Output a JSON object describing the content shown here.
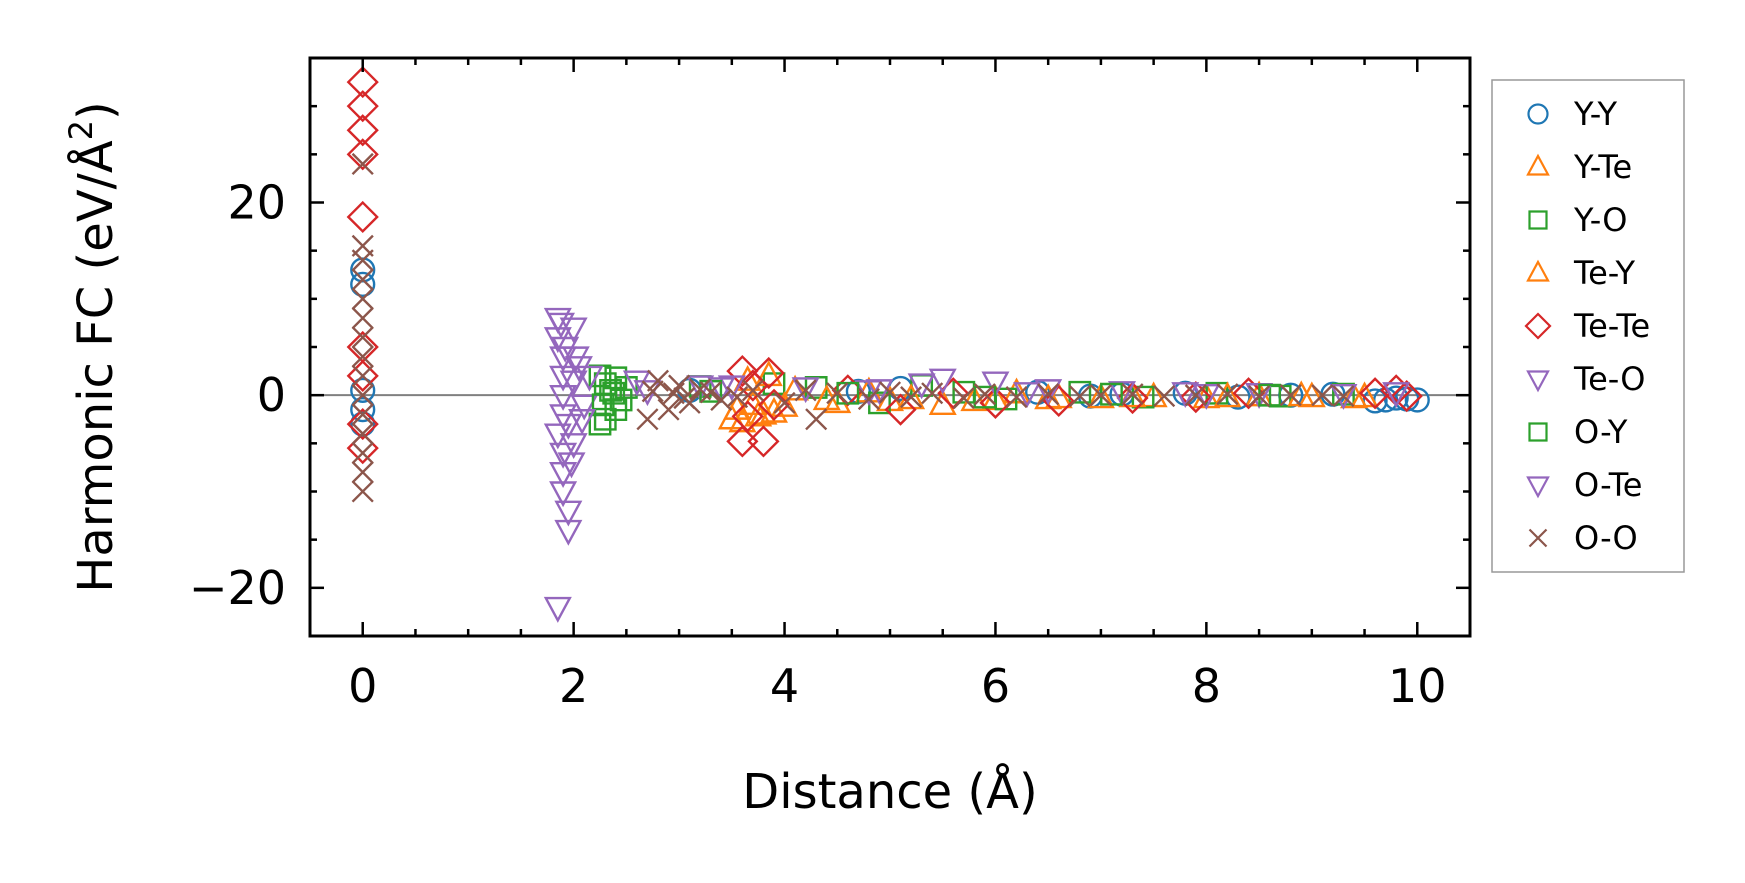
{
  "chart_data": {
    "type": "scatter",
    "xlabel": "Distance (Å)",
    "ylabel_main": "Harmonic FC (eV/Å",
    "ylabel_sup": "2",
    "ylabel_close": ")",
    "xlim": [
      -0.5,
      10.5
    ],
    "ylim": [
      -25,
      35
    ],
    "x_ticks": [
      0,
      2,
      4,
      6,
      8,
      10
    ],
    "x_tick_labels": [
      "0",
      "2",
      "4",
      "6",
      "8",
      "10"
    ],
    "y_ticks": [
      -20,
      0,
      20
    ],
    "y_tick_labels": [
      "−20",
      "0",
      "20"
    ],
    "zero_line": true,
    "grid": false,
    "legend_position": "outside-right",
    "series": [
      {
        "name": "Y-Y",
        "marker": "circle",
        "color": "#1f77b4",
        "points": [
          [
            0,
            13
          ],
          [
            0,
            11.5
          ],
          [
            0,
            0.5
          ],
          [
            0,
            -3
          ],
          [
            0,
            -1.5
          ],
          [
            9.6,
            -0.6
          ],
          [
            9.7,
            -0.5
          ],
          [
            9.8,
            -0.3
          ],
          [
            9.9,
            -0.4
          ],
          [
            10.0,
            -0.5
          ],
          [
            5.1,
            0.7
          ],
          [
            8.3,
            -0.2
          ],
          [
            6.4,
            0.3
          ],
          [
            7.2,
            0.1
          ],
          [
            8.8,
            0.0
          ],
          [
            4.7,
            0.4
          ],
          [
            3.1,
            0.5
          ],
          [
            6.9,
            -0.1
          ],
          [
            7.8,
            0.2
          ],
          [
            9.2,
            0.1
          ]
        ]
      },
      {
        "name": "Y-Te",
        "marker": "triangle-up",
        "color": "#ff7f0e",
        "points": [
          [
            3.5,
            -2.5
          ],
          [
            3.6,
            -2.8
          ],
          [
            3.65,
            1.5
          ],
          [
            3.7,
            -1.0
          ],
          [
            3.8,
            -2.0
          ],
          [
            3.9,
            -1.8
          ],
          [
            4.1,
            0.5
          ],
          [
            4.5,
            -0.8
          ],
          [
            5.0,
            -0.6
          ],
          [
            5.5,
            -1.0
          ],
          [
            6.0,
            -0.5
          ],
          [
            6.5,
            -0.4
          ],
          [
            7.0,
            -0.3
          ],
          [
            7.5,
            -0.2
          ],
          [
            8.0,
            -0.3
          ],
          [
            8.5,
            -0.1
          ],
          [
            9.0,
            -0.2
          ],
          [
            9.4,
            -0.3
          ],
          [
            4.8,
            0.3
          ],
          [
            6.2,
            0.2
          ]
        ]
      },
      {
        "name": "Y-O",
        "marker": "square",
        "color": "#2ca02c",
        "points": [
          [
            2.25,
            2.0
          ],
          [
            2.25,
            -3.0
          ],
          [
            2.3,
            -2.5
          ],
          [
            2.3,
            1.2
          ],
          [
            2.35,
            0.5
          ],
          [
            2.4,
            -1.5
          ],
          [
            2.4,
            1.8
          ],
          [
            2.5,
            0.8
          ],
          [
            3.2,
            0.9
          ],
          [
            3.9,
            1.2
          ],
          [
            4.3,
            0.8
          ],
          [
            4.9,
            -0.8
          ],
          [
            5.3,
            1.0
          ],
          [
            6.1,
            -0.4
          ],
          [
            6.8,
            0.3
          ],
          [
            7.4,
            -0.2
          ],
          [
            8.1,
            0.2
          ],
          [
            8.7,
            -0.1
          ],
          [
            9.3,
            0.1
          ],
          [
            5.7,
            0.3
          ]
        ]
      },
      {
        "name": "Te-Y",
        "marker": "triangle-up",
        "color": "#ff7f0e",
        "points": [
          [
            3.55,
            -1.5
          ],
          [
            3.75,
            -2.2
          ],
          [
            3.85,
            2.0
          ],
          [
            4.0,
            -1.2
          ],
          [
            4.4,
            -0.5
          ],
          [
            5.2,
            -0.4
          ],
          [
            5.8,
            -0.6
          ],
          [
            6.6,
            -0.3
          ],
          [
            7.3,
            -0.2
          ],
          [
            8.2,
            -0.2
          ],
          [
            8.9,
            -0.1
          ],
          [
            9.5,
            -0.2
          ]
        ]
      },
      {
        "name": "Te-Te",
        "marker": "diamond",
        "color": "#d62728",
        "points": [
          [
            0,
            32.5
          ],
          [
            0,
            30
          ],
          [
            0,
            27.5
          ],
          [
            0,
            25
          ],
          [
            0,
            18.5
          ],
          [
            0,
            5
          ],
          [
            0,
            2
          ],
          [
            0,
            -3
          ],
          [
            0,
            -5.5
          ],
          [
            3.6,
            2.5
          ],
          [
            3.6,
            -4.8
          ],
          [
            3.65,
            -2.2
          ],
          [
            3.7,
            1.0
          ],
          [
            3.8,
            -4.8
          ],
          [
            3.85,
            2.3
          ],
          [
            3.9,
            -1.0
          ],
          [
            5.1,
            -1.5
          ],
          [
            6.0,
            -0.8
          ],
          [
            6.6,
            -0.6
          ],
          [
            7.3,
            -0.3
          ],
          [
            8.4,
            0.2
          ],
          [
            9.6,
            0.2
          ],
          [
            9.8,
            0.5
          ],
          [
            9.9,
            -0.1
          ],
          [
            4.6,
            0.5
          ],
          [
            5.6,
            0.2
          ],
          [
            7.9,
            -0.2
          ]
        ]
      },
      {
        "name": "Te-O",
        "marker": "triangle-down",
        "color": "#9467bd",
        "points": [
          [
            1.85,
            8
          ],
          [
            1.85,
            6
          ],
          [
            1.9,
            4
          ],
          [
            1.9,
            2
          ],
          [
            1.9,
            0
          ],
          [
            1.9,
            -2
          ],
          [
            1.85,
            -4
          ],
          [
            1.9,
            -6
          ],
          [
            1.9,
            -8
          ],
          [
            1.9,
            -10
          ],
          [
            1.95,
            -12
          ],
          [
            1.95,
            -14
          ],
          [
            1.85,
            -22
          ],
          [
            2.0,
            7
          ],
          [
            2.0,
            1.5
          ],
          [
            2.0,
            -5
          ],
          [
            2.05,
            3
          ],
          [
            2.1,
            -1
          ],
          [
            2.6,
            1.5
          ],
          [
            3.2,
            1.0
          ],
          [
            3.5,
            1.0
          ],
          [
            4.2,
            0.8
          ],
          [
            5.3,
            1.2
          ],
          [
            5.5,
            1.7
          ],
          [
            6.0,
            1.4
          ],
          [
            6.5,
            0.6
          ],
          [
            7.2,
            0.4
          ],
          [
            7.8,
            0.3
          ],
          [
            8.5,
            0.2
          ],
          [
            9.3,
            0.1
          ],
          [
            9.8,
            0.3
          ],
          [
            4.8,
            0.5
          ]
        ]
      },
      {
        "name": "O-Y",
        "marker": "square",
        "color": "#2ca02c",
        "points": [
          [
            2.28,
            -1.0
          ],
          [
            2.38,
            0.2
          ],
          [
            2.45,
            -0.5
          ],
          [
            3.3,
            0.4
          ],
          [
            4.6,
            0.2
          ],
          [
            5.9,
            -0.2
          ],
          [
            7.1,
            0.1
          ],
          [
            8.6,
            0.0
          ]
        ]
      },
      {
        "name": "O-Te",
        "marker": "triangle-down",
        "color": "#9467bd",
        "points": [
          [
            1.88,
            7.5
          ],
          [
            1.92,
            5
          ],
          [
            1.95,
            -3
          ],
          [
            1.98,
            -7
          ],
          [
            2.02,
            4
          ],
          [
            2.08,
            -2.5
          ],
          [
            2.15,
            2
          ],
          [
            2.7,
            0.5
          ],
          [
            3.4,
            0.8
          ],
          [
            4.9,
            0.6
          ],
          [
            6.3,
            0.3
          ],
          [
            8.0,
            0.1
          ]
        ]
      },
      {
        "name": "O-O",
        "marker": "x",
        "color": "#8c564b",
        "points": [
          [
            0,
            24
          ],
          [
            0,
            15.5
          ],
          [
            0,
            14
          ],
          [
            0,
            12
          ],
          [
            0,
            10
          ],
          [
            0,
            8
          ],
          [
            0,
            6
          ],
          [
            0,
            4
          ],
          [
            0,
            2
          ],
          [
            0,
            0
          ],
          [
            0,
            -2
          ],
          [
            0,
            -4
          ],
          [
            0,
            -6
          ],
          [
            0,
            -8
          ],
          [
            0,
            -10
          ],
          [
            2.7,
            -2.5
          ],
          [
            2.8,
            1.5
          ],
          [
            2.9,
            -1.5
          ],
          [
            3.0,
            1.0
          ],
          [
            3.1,
            -0.8
          ],
          [
            3.2,
            0.6
          ],
          [
            3.4,
            -0.5
          ],
          [
            3.7,
            0.5
          ],
          [
            4.0,
            -0.8
          ],
          [
            4.3,
            -2.5
          ],
          [
            4.2,
            0.5
          ],
          [
            4.5,
            0.2
          ],
          [
            4.8,
            -0.4
          ],
          [
            5.0,
            0.3
          ],
          [
            5.2,
            -0.2
          ],
          [
            5.4,
            0.2
          ],
          [
            5.7,
            -0.3
          ],
          [
            5.9,
            0.1
          ],
          [
            6.2,
            -0.2
          ],
          [
            6.5,
            0.1
          ],
          [
            6.8,
            -0.1
          ],
          [
            7.0,
            0.0
          ],
          [
            7.3,
            0.1
          ],
          [
            7.6,
            -0.1
          ],
          [
            7.9,
            0.0
          ],
          [
            8.2,
            0.1
          ],
          [
            8.5,
            -0.1
          ],
          [
            8.8,
            0.0
          ],
          [
            9.1,
            0.0
          ],
          [
            9.3,
            -0.1
          ],
          [
            2.75,
            0.4
          ],
          [
            2.95,
            0.2
          ],
          [
            3.05,
            -0.3
          ],
          [
            3.3,
            0.3
          ],
          [
            3.55,
            -0.2
          ]
        ]
      }
    ]
  }
}
